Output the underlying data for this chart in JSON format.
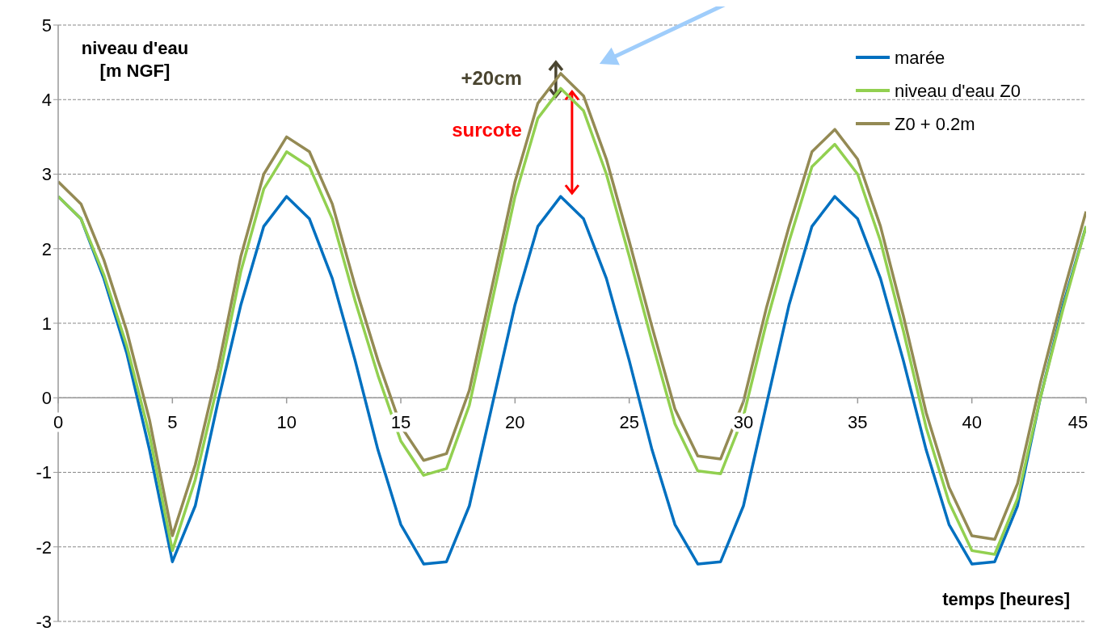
{
  "chart_data": {
    "type": "line",
    "ylabel": "niveau d'eau\n[m NGF]",
    "xlabel": "temps [heures]",
    "x": [
      0,
      1,
      2,
      3,
      4,
      5,
      6,
      7,
      8,
      9,
      10,
      11,
      12,
      13,
      14,
      15,
      16,
      17,
      18,
      19,
      20,
      21,
      22,
      23,
      24,
      25,
      26,
      27,
      28,
      29,
      30,
      31,
      32,
      33,
      34,
      35,
      36,
      37,
      38,
      39,
      40,
      41,
      42,
      43,
      44,
      45
    ],
    "series": [
      {
        "name": "marée",
        "color": "#0070c0",
        "values": [
          2.7,
          2.4,
          1.6,
          0.6,
          -0.7,
          -2.2,
          -1.45,
          -0.05,
          1.25,
          2.3,
          2.7,
          2.4,
          1.6,
          0.5,
          -0.7,
          -1.7,
          -2.23,
          -2.2,
          -1.45,
          -0.1,
          1.25,
          2.3,
          2.7,
          2.4,
          1.6,
          0.5,
          -0.7,
          -1.7,
          -2.23,
          -2.2,
          -1.45,
          -0.1,
          1.25,
          2.3,
          2.7,
          2.4,
          1.6,
          0.5,
          -0.7,
          -1.7,
          -2.23,
          -2.2,
          -1.45,
          0,
          1.25,
          2.3
        ]
      },
      {
        "name": "niveau d'eau Z0",
        "color": "#92d050",
        "values": [
          2.7,
          2.4,
          1.65,
          0.7,
          -0.5,
          -2.05,
          -1.1,
          0.2,
          1.7,
          2.8,
          3.3,
          3.1,
          2.4,
          1.3,
          0.3,
          -0.58,
          -1.04,
          -0.95,
          -0.1,
          1.3,
          2.7,
          3.75,
          4.15,
          3.85,
          3.0,
          1.9,
          0.75,
          -0.35,
          -0.98,
          -1.02,
          -0.25,
          1.0,
          2.1,
          3.1,
          3.4,
          3.0,
          2.1,
          0.9,
          -0.4,
          -1.4,
          -2.05,
          -2.1,
          -1.35,
          0,
          1.2,
          2.3
        ]
      },
      {
        "name": "Z0 + 0.2m",
        "color": "#948a54",
        "values": [
          2.9,
          2.6,
          1.85,
          0.9,
          -0.3,
          -1.85,
          -0.9,
          0.4,
          1.9,
          3.0,
          3.5,
          3.3,
          2.6,
          1.5,
          0.5,
          -0.38,
          -0.84,
          -0.75,
          0.1,
          1.5,
          2.9,
          3.95,
          4.35,
          4.05,
          3.2,
          2.1,
          0.95,
          -0.15,
          -0.78,
          -0.82,
          -0.05,
          1.2,
          2.3,
          3.3,
          3.6,
          3.2,
          2.3,
          1.1,
          -0.2,
          -1.2,
          -1.85,
          -1.9,
          -1.15,
          0.2,
          1.4,
          2.5
        ]
      }
    ],
    "annotations": [
      "+20cm",
      "surcote"
    ],
    "xlim": [
      0,
      45
    ],
    "xticks": [
      0,
      5,
      10,
      15,
      20,
      25,
      30,
      35,
      40,
      45
    ],
    "ylim": [
      -3,
      5
    ],
    "yticks": [
      -3,
      -2,
      -1,
      0,
      1,
      2,
      3,
      4,
      5
    ],
    "grid": "y",
    "legend": "top right",
    "marker": "none",
    "line_style": "solid"
  }
}
